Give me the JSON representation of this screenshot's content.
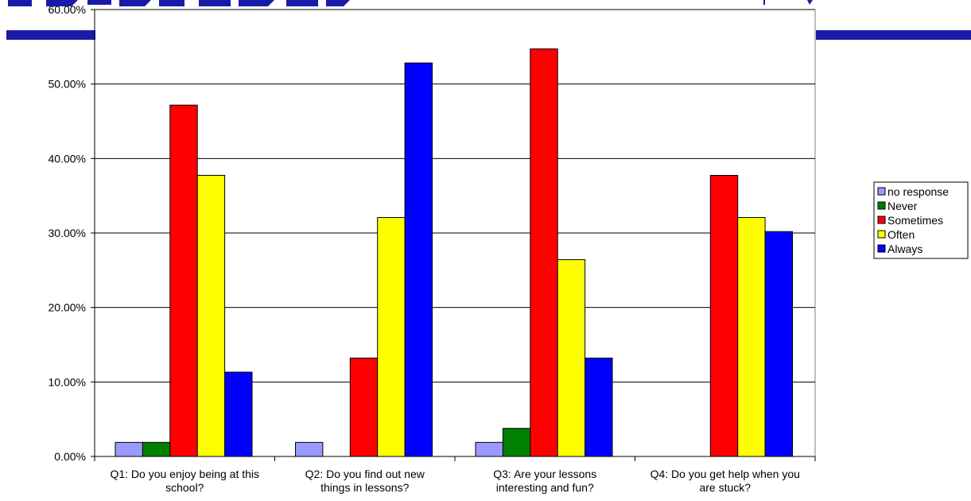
{
  "colors": {
    "slide_band": "#1a1aa8",
    "gridline": "#000000",
    "no_response": "#9999ff",
    "never": "#008000",
    "sometimes": "#ff0000",
    "often": "#ffff00",
    "always": "#0000ff"
  },
  "chart_data": {
    "type": "bar",
    "categories": [
      [
        "Q1: Do you enjoy being at this",
        "school?"
      ],
      [
        "Q2: Do you find out new",
        "things in lessons?"
      ],
      [
        "Q3: Are your lessons",
        "interesting and fun?"
      ],
      [
        "Q4: Do you get help when you",
        "are stuck?"
      ]
    ],
    "series": [
      {
        "name": "no response",
        "color": "#9999ff",
        "values": [
          1.89,
          1.89,
          1.89,
          0
        ]
      },
      {
        "name": "Never",
        "color": "#008000",
        "values": [
          1.89,
          0,
          3.77,
          0
        ]
      },
      {
        "name": "Sometimes",
        "color": "#ff0000",
        "values": [
          47.17,
          13.21,
          54.72,
          37.74
        ]
      },
      {
        "name": "Often",
        "color": "#ffff00",
        "values": [
          37.74,
          32.08,
          26.42,
          32.08
        ]
      },
      {
        "name": "Always",
        "color": "#0000ff",
        "values": [
          11.32,
          52.83,
          13.21,
          30.19
        ]
      }
    ],
    "yticks": [
      "0.00%",
      "10.00%",
      "20.00%",
      "30.00%",
      "40.00%",
      "50.00%",
      "60.00%"
    ],
    "ylim": [
      0,
      60
    ],
    "grid": true,
    "legend_position": "right"
  }
}
